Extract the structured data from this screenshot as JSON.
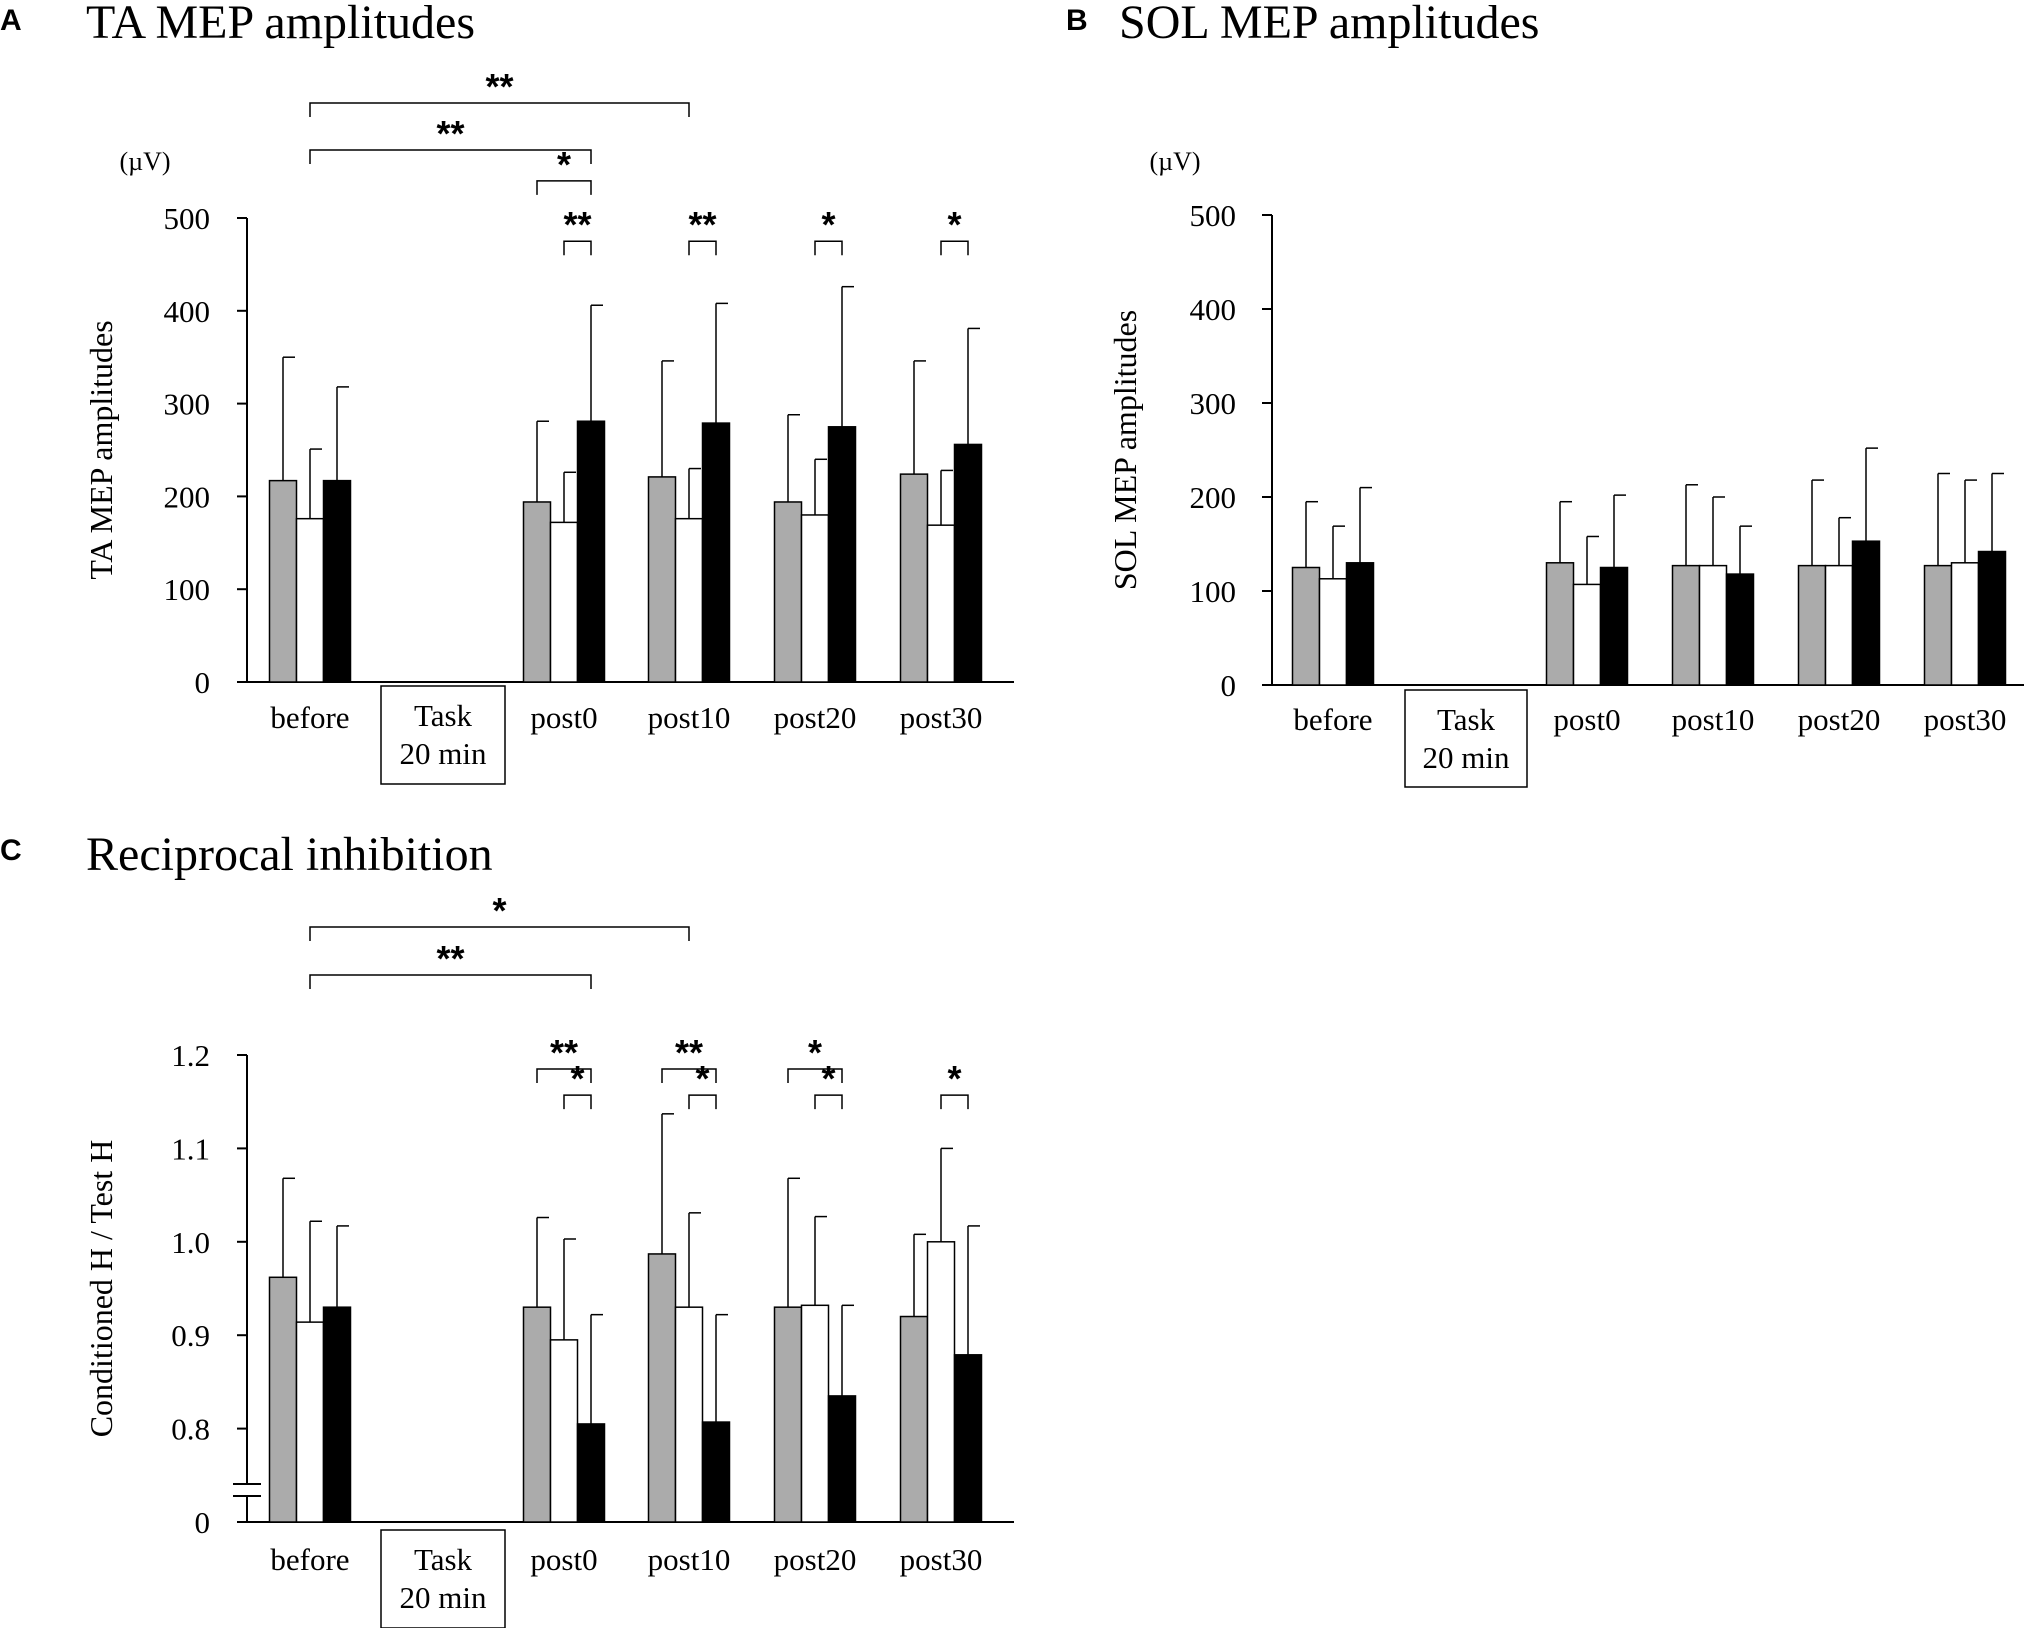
{
  "colors": {
    "gray": "#ababab",
    "white": "#ffffff",
    "black": "#000000"
  },
  "chart_data": [
    {
      "panel_letter": "A",
      "type": "bar",
      "title": "TA MEP amplitudes",
      "ylabel": "TA MEP amplitudes",
      "unit": "(µV)",
      "ylim": [
        0,
        500
      ],
      "yticks": [
        "0",
        "100",
        "200",
        "300",
        "400",
        "500"
      ],
      "categories": [
        "before",
        "Task|20 min",
        "post0",
        "post10",
        "post20",
        "post30"
      ],
      "task_box_index": 1,
      "series": [
        {
          "name": "gray",
          "values": [
            217,
            null,
            194,
            221,
            194,
            224
          ],
          "errors": [
            133,
            null,
            87,
            125,
            94,
            122
          ]
        },
        {
          "name": "white",
          "values": [
            176,
            null,
            172,
            176,
            180,
            169
          ],
          "errors": [
            75,
            null,
            54,
            54,
            60,
            59
          ]
        },
        {
          "name": "black",
          "values": [
            217,
            null,
            281,
            279,
            275,
            256
          ],
          "errors": [
            101,
            null,
            125,
            129,
            151,
            125
          ]
        }
      ],
      "significance": [
        {
          "from_group": 0,
          "from_series": 1,
          "to_group": 3,
          "to_series": 1,
          "label": "**",
          "level": "top"
        },
        {
          "from_group": 0,
          "from_series": 1,
          "to_group": 2,
          "to_series": 2,
          "label": "**",
          "level": "second"
        },
        {
          "from_group": 2,
          "from_series": 0,
          "to_group": 2,
          "to_series": 2,
          "label": "*",
          "level": 540
        },
        {
          "from_group": 2,
          "from_series": 1,
          "to_group": 2,
          "to_series": 2,
          "label": "**",
          "level": 475
        },
        {
          "from_group": 3,
          "from_series": 1,
          "to_group": 3,
          "to_series": 2,
          "label": "**",
          "level": 475
        },
        {
          "from_group": 4,
          "from_series": 1,
          "to_group": 4,
          "to_series": 2,
          "label": "*",
          "level": 475
        },
        {
          "from_group": 5,
          "from_series": 1,
          "to_group": 5,
          "to_series": 2,
          "label": "*",
          "level": 475
        }
      ]
    },
    {
      "panel_letter": "B",
      "type": "bar",
      "title": "SOL MEP amplitudes",
      "ylabel": "SOL MEP amplitudes",
      "unit": "(µV)",
      "ylim": [
        0,
        500
      ],
      "yticks": [
        "0",
        "100",
        "200",
        "300",
        "400",
        "500"
      ],
      "categories": [
        "before",
        "Task|20 min",
        "post0",
        "post10",
        "post20",
        "post30"
      ],
      "task_box_index": 1,
      "series": [
        {
          "name": "gray",
          "values": [
            125,
            null,
            130,
            127,
            127,
            127
          ],
          "errors": [
            70,
            null,
            65,
            86,
            91,
            98
          ]
        },
        {
          "name": "white",
          "values": [
            113,
            null,
            107,
            127,
            127,
            130
          ],
          "errors": [
            56,
            null,
            51,
            73,
            51,
            88
          ]
        },
        {
          "name": "black",
          "values": [
            130,
            null,
            125,
            118,
            153,
            142
          ],
          "errors": [
            80,
            null,
            77,
            51,
            99,
            83
          ]
        }
      ],
      "significance": []
    },
    {
      "panel_letter": "C",
      "type": "bar",
      "title": "Reciprocal inhibition",
      "ylabel": "Conditioned H / Test H",
      "unit": "",
      "ylim": [
        0.7,
        1.2
      ],
      "axis_break": true,
      "yticks": [
        "0",
        "0.8",
        "0.9",
        "1.0",
        "1.1",
        "1.2"
      ],
      "categories": [
        "before",
        "Task|20 min",
        "post0",
        "post10",
        "post20",
        "post30"
      ],
      "task_box_index": 1,
      "series": [
        {
          "name": "gray",
          "values": [
            0.962,
            null,
            0.93,
            0.987,
            0.93,
            0.92
          ],
          "errors": [
            0.106,
            null,
            0.096,
            0.15,
            0.138,
            0.088
          ]
        },
        {
          "name": "white",
          "values": [
            0.914,
            null,
            0.895,
            0.93,
            0.932,
            1.0
          ],
          "errors": [
            0.108,
            null,
            0.108,
            0.101,
            0.095,
            0.1
          ]
        },
        {
          "name": "black",
          "values": [
            0.93,
            null,
            0.805,
            0.807,
            0.835,
            0.879
          ],
          "errors": [
            0.087,
            null,
            0.117,
            0.115,
            0.097,
            0.138
          ]
        }
      ],
      "significance": [
        {
          "from_group": 0,
          "from_series": 1,
          "to_group": 3,
          "to_series": 1,
          "label": "*",
          "level": "top"
        },
        {
          "from_group": 0,
          "from_series": 1,
          "to_group": 2,
          "to_series": 2,
          "label": "**",
          "level": "second"
        },
        {
          "from_group": 2,
          "from_series": 0,
          "to_group": 2,
          "to_series": 2,
          "label": "**",
          "level": 1.185
        },
        {
          "from_group": 2,
          "from_series": 1,
          "to_group": 2,
          "to_series": 2,
          "label": "*",
          "level": 1.157
        },
        {
          "from_group": 3,
          "from_series": 0,
          "to_group": 3,
          "to_series": 2,
          "label": "**",
          "level": 1.185
        },
        {
          "from_group": 3,
          "from_series": 1,
          "to_group": 3,
          "to_series": 2,
          "label": "*",
          "level": 1.157
        },
        {
          "from_group": 4,
          "from_series": 0,
          "to_group": 4,
          "to_series": 2,
          "label": "*",
          "level": 1.185
        },
        {
          "from_group": 4,
          "from_series": 1,
          "to_group": 4,
          "to_series": 2,
          "label": "*",
          "level": 1.157
        },
        {
          "from_group": 5,
          "from_series": 1,
          "to_group": 5,
          "to_series": 2,
          "label": "*",
          "level": 1.157
        }
      ]
    }
  ]
}
